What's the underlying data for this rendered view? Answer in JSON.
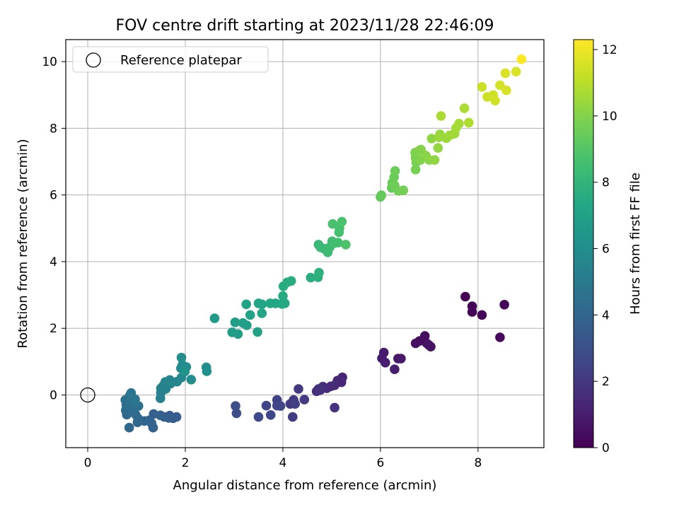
{
  "chart_data": {
    "type": "scatter",
    "title": "FOV centre drift starting at 2023/11/28 22:46:09",
    "xlabel": "Angular distance from reference (arcmin)",
    "ylabel": "Rotation from reference (arcmin)",
    "xlim": [
      -0.45,
      9.35
    ],
    "ylim": [
      -1.58,
      10.66
    ],
    "x_ticks": [
      0,
      2,
      4,
      6,
      8
    ],
    "y_ticks": [
      0,
      2,
      4,
      6,
      8,
      10
    ],
    "grid": true,
    "legend": {
      "location": "upper-left",
      "entries": [
        "Reference platepar"
      ]
    },
    "reference_point": {
      "x": 0,
      "y": 0,
      "label": "Reference platepar"
    },
    "colorbar": {
      "label": "Hours from first FF file",
      "colormap": "viridis",
      "range": [
        0,
        12.3
      ],
      "ticks": [
        0,
        2,
        4,
        6,
        8,
        10,
        12
      ]
    },
    "columns": [
      "x",
      "y",
      "hours"
    ],
    "points": [
      [
        7.74,
        2.95,
        0.0
      ],
      [
        7.88,
        2.66,
        0.05
      ],
      [
        7.88,
        2.49,
        0.1
      ],
      [
        8.08,
        2.4,
        0.15
      ],
      [
        8.54,
        2.71,
        0.2
      ],
      [
        8.45,
        1.73,
        0.25
      ],
      [
        6.91,
        1.77,
        0.4
      ],
      [
        6.8,
        1.62,
        0.45
      ],
      [
        6.72,
        1.55,
        0.5
      ],
      [
        6.95,
        1.55,
        0.55
      ],
      [
        7.03,
        1.45,
        0.6
      ],
      [
        6.99,
        1.5,
        0.65
      ],
      [
        6.36,
        1.09,
        0.8
      ],
      [
        6.42,
        1.09,
        0.85
      ],
      [
        6.03,
        1.1,
        0.9
      ],
      [
        6.07,
        1.27,
        0.95
      ],
      [
        6.1,
        0.97,
        1.0
      ],
      [
        6.29,
        0.77,
        1.05
      ],
      [
        5.22,
        0.53,
        1.3
      ],
      [
        5.2,
        0.38,
        1.35
      ],
      [
        5.12,
        0.43,
        1.4
      ],
      [
        5.06,
        0.29,
        1.45
      ],
      [
        4.98,
        0.26,
        1.5
      ],
      [
        4.9,
        0.2,
        1.55
      ],
      [
        4.82,
        0.25,
        1.6
      ],
      [
        4.77,
        0.15,
        1.65
      ],
      [
        4.69,
        0.11,
        1.7
      ],
      [
        4.73,
        0.18,
        1.75
      ],
      [
        5.06,
        -0.38,
        1.8
      ],
      [
        4.32,
        0.18,
        2.0
      ],
      [
        4.22,
        -0.15,
        2.05
      ],
      [
        4.15,
        -0.27,
        2.1
      ],
      [
        4.44,
        -0.14,
        2.15
      ],
      [
        4.2,
        -0.66,
        2.2
      ],
      [
        4.25,
        -0.27,
        2.25
      ],
      [
        3.88,
        -0.15,
        2.4
      ],
      [
        3.95,
        -0.33,
        2.45
      ],
      [
        3.66,
        -0.32,
        2.5
      ],
      [
        3.88,
        -0.32,
        2.55
      ],
      [
        3.75,
        -0.6,
        2.6
      ],
      [
        3.5,
        -0.66,
        2.65
      ],
      [
        3.03,
        -0.33,
        2.9
      ],
      [
        3.05,
        -0.55,
        2.95
      ],
      [
        1.68,
        -0.62,
        3.5
      ],
      [
        1.75,
        -0.7,
        3.55
      ],
      [
        1.82,
        -0.66,
        3.6
      ],
      [
        1.57,
        -0.66,
        3.65
      ],
      [
        1.66,
        -0.69,
        3.7
      ],
      [
        1.49,
        -0.61,
        3.75
      ],
      [
        1.35,
        -0.57,
        3.8
      ],
      [
        1.26,
        -0.76,
        3.85
      ],
      [
        1.34,
        -0.98,
        3.9
      ],
      [
        1.31,
        -0.85,
        3.95
      ],
      [
        1.16,
        -0.78,
        4.0
      ],
      [
        1.02,
        -0.82,
        4.05
      ],
      [
        0.85,
        -0.98,
        4.1
      ],
      [
        1.03,
        -0.7,
        4.15
      ],
      [
        0.8,
        -0.59,
        4.2
      ],
      [
        0.78,
        -0.46,
        4.25
      ],
      [
        0.98,
        -0.58,
        4.3
      ],
      [
        0.92,
        -0.5,
        4.35
      ],
      [
        0.87,
        -0.38,
        4.4
      ],
      [
        1.04,
        -0.33,
        4.45
      ],
      [
        0.79,
        -0.3,
        4.5
      ],
      [
        0.77,
        -0.15,
        4.55
      ],
      [
        0.88,
        -0.21,
        4.6
      ],
      [
        0.86,
        -0.02,
        4.65
      ],
      [
        0.95,
        -0.22,
        4.7
      ],
      [
        0.89,
        0.06,
        4.75
      ],
      [
        0.97,
        -0.13,
        4.8
      ],
      [
        1.5,
        0.07,
        5.2
      ],
      [
        1.49,
        -0.1,
        5.25
      ],
      [
        1.5,
        0.2,
        5.3
      ],
      [
        1.55,
        0.28,
        5.35
      ],
      [
        1.6,
        0.18,
        5.4
      ],
      [
        1.59,
        0.39,
        5.45
      ],
      [
        1.66,
        0.37,
        5.5
      ],
      [
        1.7,
        0.34,
        5.55
      ],
      [
        1.68,
        0.45,
        5.6
      ],
      [
        1.83,
        0.4,
        5.65
      ],
      [
        1.92,
        0.52,
        5.7
      ],
      [
        1.91,
        0.8,
        5.75
      ],
      [
        1.94,
        0.9,
        5.8
      ],
      [
        1.99,
        0.78,
        5.85
      ],
      [
        1.92,
        1.12,
        5.9
      ],
      [
        2.02,
        0.84,
        5.95
      ],
      [
        2.12,
        0.46,
        6.0
      ],
      [
        2.43,
        0.83,
        6.05
      ],
      [
        2.44,
        0.71,
        6.1
      ],
      [
        1.99,
        0.7,
        6.15
      ],
      [
        2.6,
        2.3,
        6.7
      ],
      [
        2.96,
        1.88,
        6.75
      ],
      [
        3.02,
        2.18,
        6.8
      ],
      [
        3.08,
        1.83,
        6.85
      ],
      [
        3.18,
        2.16,
        6.9
      ],
      [
        3.26,
        2.09,
        6.95
      ],
      [
        3.48,
        1.89,
        7.0
      ],
      [
        3.25,
        2.72,
        7.05
      ],
      [
        3.33,
        2.4,
        7.1
      ],
      [
        3.57,
        2.45,
        7.15
      ],
      [
        3.5,
        2.75,
        7.2
      ],
      [
        3.57,
        2.72,
        7.25
      ],
      [
        3.74,
        2.75,
        7.3
      ],
      [
        3.85,
        2.75,
        7.35
      ],
      [
        3.98,
        2.73,
        7.4
      ],
      [
        4.04,
        2.75,
        7.45
      ],
      [
        4.0,
        2.97,
        7.5
      ],
      [
        4.01,
        3.26,
        7.55
      ],
      [
        4.09,
        3.38,
        7.6
      ],
      [
        4.17,
        3.42,
        7.65
      ],
      [
        4.57,
        3.52,
        7.7
      ],
      [
        4.72,
        3.53,
        7.75
      ],
      [
        4.74,
        3.67,
        7.8
      ],
      [
        4.73,
        4.51,
        8.2
      ],
      [
        4.77,
        4.43,
        8.25
      ],
      [
        4.84,
        4.39,
        8.3
      ],
      [
        4.92,
        4.28,
        8.35
      ],
      [
        4.96,
        4.43,
        8.4
      ],
      [
        5.01,
        4.61,
        8.45
      ],
      [
        5.05,
        4.55,
        8.5
      ],
      [
        5.13,
        4.57,
        8.55
      ],
      [
        5.15,
        4.88,
        8.6
      ],
      [
        5.16,
        5.0,
        8.65
      ],
      [
        5.02,
        5.13,
        8.7
      ],
      [
        5.21,
        5.2,
        8.75
      ],
      [
        5.29,
        4.51,
        8.8
      ],
      [
        6.0,
        5.94,
        9.3
      ],
      [
        6.02,
        5.99,
        9.35
      ],
      [
        6.23,
        6.21,
        9.4
      ],
      [
        6.24,
        6.36,
        9.45
      ],
      [
        6.28,
        6.53,
        9.5
      ],
      [
        6.3,
        6.72,
        9.55
      ],
      [
        6.29,
        6.29,
        9.6
      ],
      [
        6.37,
        6.12,
        9.65
      ],
      [
        6.47,
        6.14,
        9.7
      ],
      [
        6.72,
        6.76,
        9.75
      ],
      [
        6.73,
        6.98,
        9.8
      ],
      [
        6.72,
        7.12,
        9.85
      ],
      [
        6.71,
        7.27,
        9.9
      ],
      [
        6.82,
        7.05,
        9.95
      ],
      [
        6.8,
        7.34,
        10.0
      ],
      [
        6.83,
        7.36,
        10.05
      ],
      [
        6.93,
        7.18,
        10.1
      ],
      [
        7.0,
        7.05,
        10.15
      ],
      [
        7.05,
        7.69,
        10.2
      ],
      [
        7.11,
        7.05,
        10.25
      ],
      [
        7.18,
        7.41,
        10.3
      ],
      [
        7.22,
        7.82,
        10.35
      ],
      [
        7.2,
        7.73,
        10.4
      ],
      [
        7.35,
        7.7,
        10.45
      ],
      [
        7.42,
        7.79,
        10.5
      ],
      [
        7.52,
        7.84,
        10.55
      ],
      [
        7.55,
        8.01,
        10.6
      ],
      [
        7.61,
        8.14,
        10.65
      ],
      [
        7.24,
        8.37,
        10.7
      ],
      [
        7.72,
        8.6,
        10.75
      ],
      [
        7.81,
        8.17,
        10.8
      ],
      [
        8.08,
        9.24,
        11.3
      ],
      [
        8.19,
        8.94,
        11.35
      ],
      [
        8.31,
        9.0,
        11.4
      ],
      [
        8.35,
        8.83,
        11.45
      ],
      [
        8.45,
        9.29,
        11.5
      ],
      [
        8.58,
        9.14,
        11.55
      ],
      [
        8.56,
        9.65,
        11.6
      ],
      [
        8.78,
        9.7,
        11.65
      ],
      [
        8.89,
        10.07,
        12.3
      ]
    ]
  }
}
